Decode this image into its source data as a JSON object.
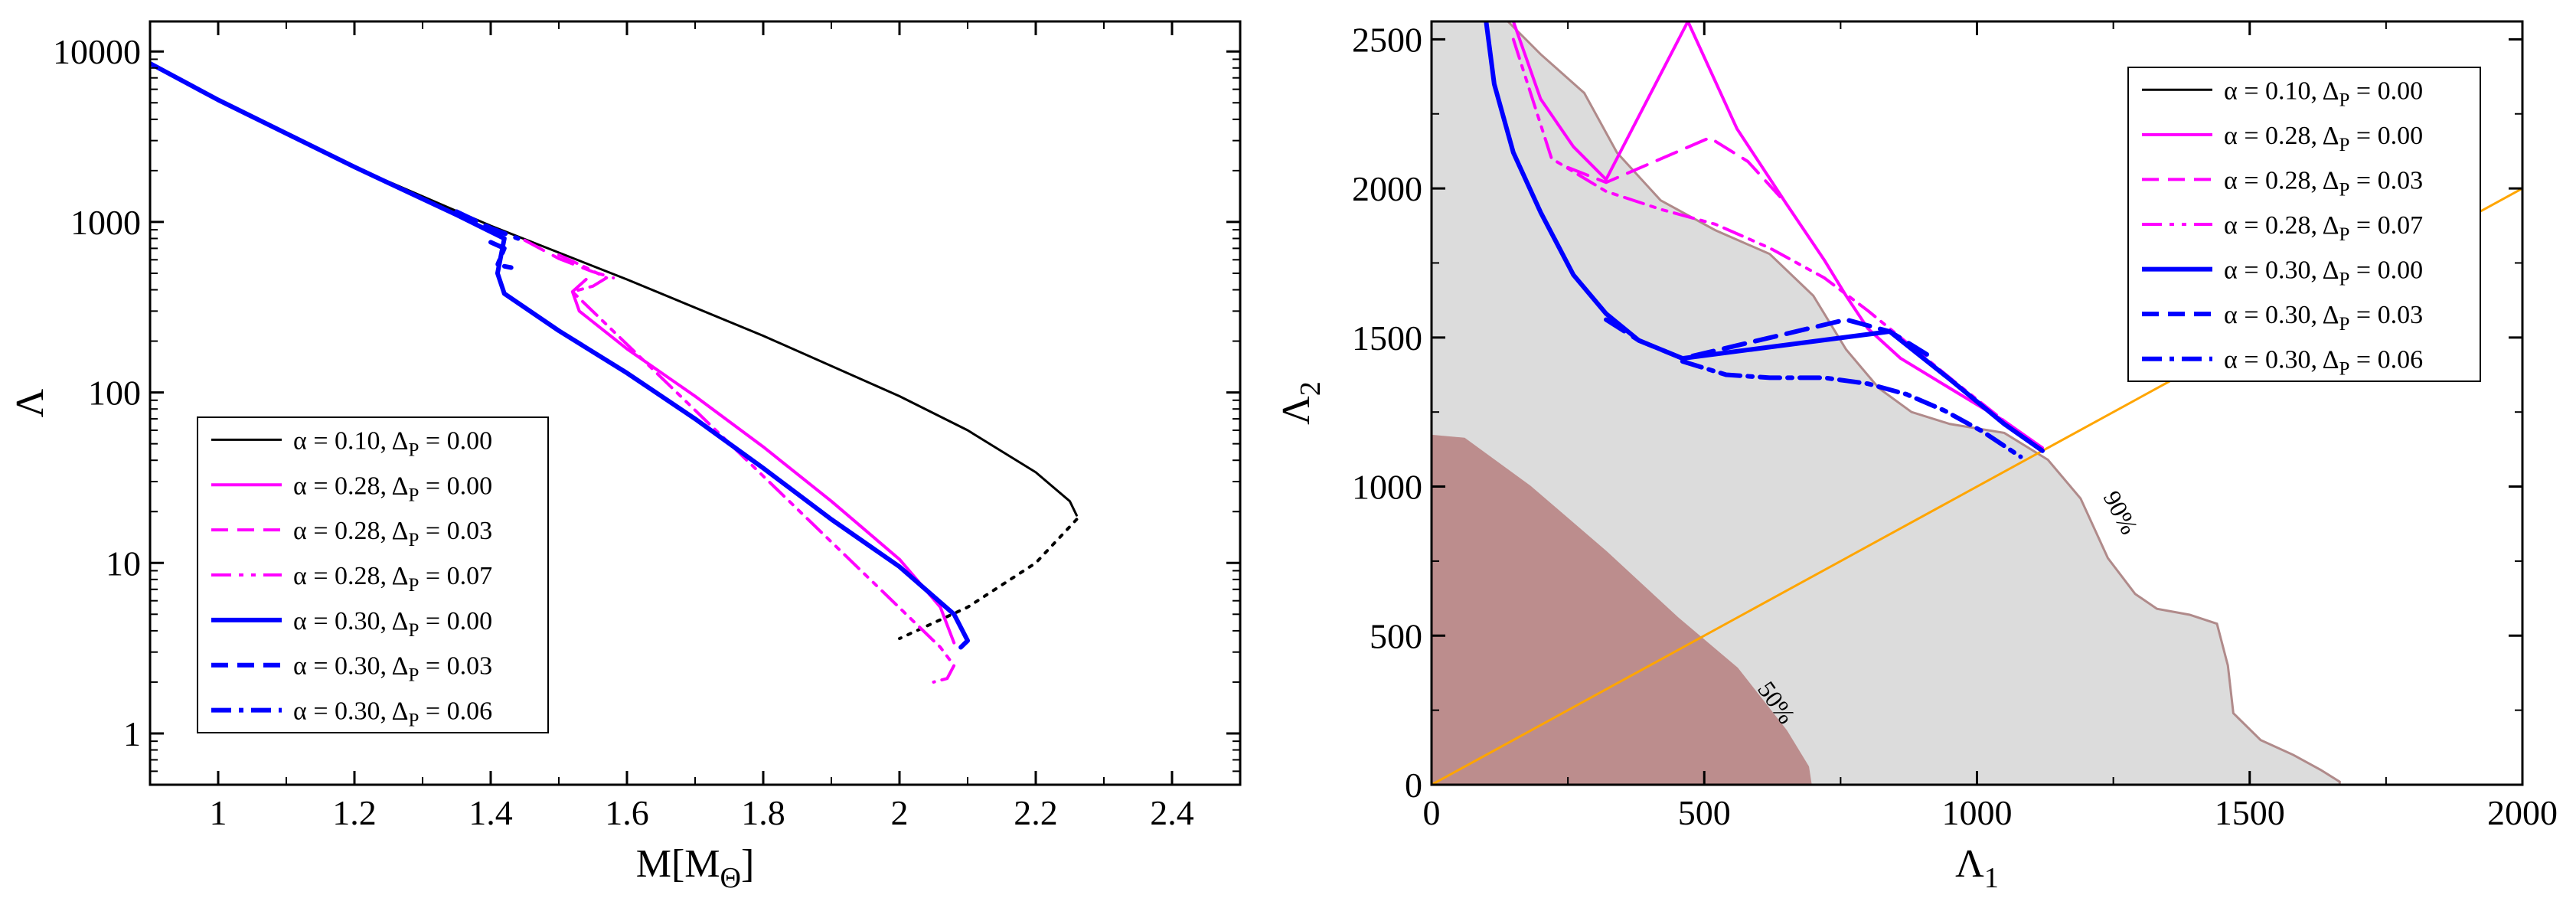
{
  "chart_data": [
    {
      "type": "line",
      "title": "",
      "xlabel": "M[M",
      "xlabel_sub": "Θ",
      "xlabel_end": "]",
      "ylabel": "Λ",
      "xlim": [
        0.9,
        2.5
      ],
      "ylim": [
        0.5,
        15000
      ],
      "yscale": "log",
      "xticks": [
        1,
        1.2,
        1.4,
        1.6,
        1.8,
        2,
        2.2,
        2.4
      ],
      "yticks": [
        1,
        10,
        100,
        1000,
        10000
      ],
      "xtick_labels": [
        "1",
        "1.2",
        "1.4",
        "1.6",
        "1.8",
        "2",
        "2.2",
        "2.4"
      ],
      "ytick_labels": [
        "1",
        "10",
        "100",
        "1000",
        "10000"
      ],
      "legend_loc": "bottom-left",
      "series": [
        {
          "name": "α = 0.10, ΔP = 0.00",
          "label_main": "α = 0.10, Δ",
          "label_sub": "P",
          "label_end": " = 0.00",
          "color": "#000000",
          "style": "solid",
          "width": 3,
          "x": [
            0.9,
            1.0,
            1.2,
            1.4,
            1.6,
            1.8,
            2.0,
            2.1,
            2.2,
            2.25,
            2.26
          ],
          "y": [
            8500,
            5200,
            2100,
            950,
            460,
            215,
            95,
            60,
            34,
            23,
            19
          ]
        },
        {
          "name": "α = 0.10 unstable",
          "color": "#000000",
          "style": "dotted",
          "width": 4,
          "legend": false,
          "x": [
            2.26,
            2.2,
            2.1,
            2.0
          ],
          "y": [
            18,
            10,
            5.5,
            3.6
          ]
        },
        {
          "name": "α = 0.28, ΔP = 0.00",
          "label_main": "α = 0.28, Δ",
          "label_sub": "P",
          "label_end": " = 0.00",
          "color": "#ff00ff",
          "style": "solid",
          "width": 4,
          "x": [
            1.54,
            1.52,
            1.53,
            1.6,
            1.7,
            1.8,
            1.9,
            2.0,
            2.06,
            2.08
          ],
          "y": [
            460,
            390,
            300,
            180,
            95,
            48,
            23,
            10.5,
            5.5,
            3.4
          ]
        },
        {
          "name": "α = 0.28, ΔP = 0.03",
          "label_main": "α = 0.28, Δ",
          "label_sub": "P",
          "label_end": " = 0.03",
          "color": "#ff00ff",
          "style": "dashed",
          "width": 4,
          "x": [
            1.45,
            1.5,
            1.55,
            1.58
          ],
          "y": [
            780,
            610,
            510,
            470
          ]
        },
        {
          "name": "α = 0.28, ΔP = 0.07",
          "label_main": "α = 0.28, Δ",
          "label_sub": "P",
          "label_end": " = 0.07",
          "color": "#ff00ff",
          "style": "dashdotdot",
          "width": 4,
          "x": [
            1.5,
            1.54,
            1.57,
            1.55,
            1.52,
            2.06,
            2.08,
            2.07,
            2.05
          ],
          "y": [
            640,
            540,
            470,
            420,
            390,
            3.2,
            2.5,
            2.1,
            2.0
          ]
        },
        {
          "name": "α = 0.30, ΔP = 0.00",
          "label_main": "α = 0.30, Δ",
          "label_sub": "P",
          "label_end": " = 0.00",
          "color": "#0000ff",
          "style": "solid",
          "width": 6,
          "x": [
            0.9,
            1.0,
            1.2,
            1.35,
            1.42,
            1.41,
            1.42,
            1.5,
            1.6,
            1.7,
            1.8,
            1.9,
            2.0,
            2.08,
            2.1,
            2.09
          ],
          "y": [
            8500,
            5200,
            2100,
            1100,
            800,
            500,
            380,
            230,
            130,
            70,
            36,
            18,
            9.5,
            5,
            3.5,
            3.2
          ]
        },
        {
          "name": "α = 0.30, ΔP = 0.03",
          "label_main": "α = 0.30, Δ",
          "label_sub": "P",
          "label_end": " = 0.03",
          "color": "#0000ff",
          "style": "dashed",
          "width": 6,
          "x": [
            1.35,
            1.4,
            1.44
          ],
          "y": [
            1150,
            920,
            800
          ]
        },
        {
          "name": "α = 0.30, ΔP = 0.06",
          "label_main": "α = 0.30, Δ",
          "label_sub": "P",
          "label_end": " = 0.06",
          "color": "#0000ff",
          "style": "dashdot",
          "width": 6,
          "x": [
            1.4,
            1.42,
            1.41,
            1.43
          ],
          "y": [
            760,
            700,
            560,
            540
          ]
        }
      ]
    },
    {
      "type": "line",
      "title": "",
      "xlabel": "Λ",
      "xlabel_sub": "1",
      "ylabel": "Λ",
      "ylabel_sub": "2",
      "xlim": [
        0,
        2000
      ],
      "ylim": [
        0,
        2560
      ],
      "xticks": [
        0,
        500,
        1000,
        1500,
        2000
      ],
      "yticks": [
        0,
        500,
        1000,
        1500,
        2000,
        2500
      ],
      "xtick_labels": [
        "0",
        "500",
        "1000",
        "1500",
        "2000"
      ],
      "ytick_labels": [
        "0",
        "500",
        "1000",
        "1500",
        "2000",
        "2500"
      ],
      "legend_loc": "top-right",
      "regions": [
        {
          "name": "90% credible region",
          "label": "90%",
          "fill": "#dcdcdc",
          "stroke": "#b08a8a",
          "x": [
            0,
            140,
            200,
            280,
            340,
            420,
            520,
            620,
            700,
            760,
            820,
            880,
            950,
            1050,
            1130,
            1190,
            1240,
            1290,
            1330,
            1390,
            1440,
            1460,
            1470,
            1520,
            1580,
            1630,
            1665,
            1665,
            0
          ],
          "y": [
            2560,
            2560,
            2450,
            2320,
            2120,
            1960,
            1860,
            1780,
            1640,
            1460,
            1330,
            1250,
            1210,
            1180,
            1090,
            960,
            760,
            640,
            590,
            570,
            540,
            400,
            240,
            150,
            100,
            50,
            10,
            0,
            0
          ]
        },
        {
          "name": "50% credible region",
          "label": "50%",
          "fill": "#bc8d8d",
          "stroke": "#bc8d8d",
          "x": [
            0,
            60,
            180,
            320,
            450,
            560,
            650,
            690,
            695,
            0
          ],
          "y": [
            1170,
            1160,
            1000,
            780,
            560,
            390,
            180,
            60,
            0,
            0
          ]
        }
      ],
      "series": [
        {
          "name": "Λ1 = Λ2",
          "color": "#ffa500",
          "style": "solid",
          "width": 3,
          "legend": false,
          "x": [
            0,
            2000
          ],
          "y": [
            0,
            2000
          ]
        },
        {
          "name": "α = 0.10, ΔP = 0.00",
          "label_main": "α = 0.10, Δ",
          "label_sub": "P",
          "label_end": " = 0.00",
          "color": "#000000",
          "style": "solid",
          "width": 3,
          "x": [],
          "y": []
        },
        {
          "name": "α = 0.28, ΔP = 0.00",
          "label_main": "α = 0.28, Δ",
          "label_sub": "P",
          "label_end": " = 0.00",
          "color": "#ff00ff",
          "style": "solid",
          "width": 4,
          "x": [
            150,
            200,
            260,
            320,
            470,
            560,
            650,
            720,
            760,
            800,
            860,
            950,
            1050,
            1120
          ],
          "y": [
            2560,
            2300,
            2140,
            2030,
            2560,
            2200,
            1950,
            1760,
            1640,
            1530,
            1430,
            1330,
            1220,
            1130
          ]
        },
        {
          "name": "α = 0.28, ΔP = 0.03",
          "label_main": "α = 0.28, Δ",
          "label_sub": "P",
          "label_end": " = 0.03",
          "color": "#ff00ff",
          "style": "dashed",
          "width": 4,
          "x": [
            250,
            320,
            510,
            580,
            650
          ],
          "y": [
            2070,
            2020,
            2170,
            2090,
            1950
          ]
        },
        {
          "name": "α = 0.28, ΔP = 0.07",
          "label_main": "α = 0.28, Δ",
          "label_sub": "P",
          "label_end": " = 0.07",
          "color": "#ff00ff",
          "style": "dashdotdot",
          "width": 4,
          "x": [
            150,
            220,
            320,
            420,
            520,
            620,
            720,
            800,
            880,
            960,
            1050,
            1120
          ],
          "y": [
            2500,
            2100,
            1990,
            1930,
            1880,
            1800,
            1700,
            1590,
            1470,
            1350,
            1220,
            1120
          ]
        },
        {
          "name": "α = 0.30, ΔP = 0.00",
          "label_main": "α = 0.30, Δ",
          "label_sub": "P",
          "label_end": " = 0.00",
          "color": "#0000ff",
          "style": "solid",
          "width": 6,
          "x": [
            100,
            115,
            150,
            200,
            260,
            320,
            380,
            460,
            840,
            950,
            1050,
            1120
          ],
          "y": [
            2560,
            2350,
            2120,
            1920,
            1710,
            1580,
            1490,
            1430,
            1520,
            1360,
            1210,
            1120
          ]
        },
        {
          "name": "α = 0.30, ΔP = 0.03",
          "label_main": "α = 0.30, Δ",
          "label_sub": "P",
          "label_end": " = 0.03",
          "color": "#0000ff",
          "style": "dashed",
          "width": 6,
          "x": [
            320,
            380,
            460,
            760,
            840,
            920
          ],
          "y": [
            1560,
            1490,
            1430,
            1560,
            1520,
            1430
          ]
        },
        {
          "name": "α = 0.30, ΔP = 0.06",
          "label_main": "α = 0.30, Δ",
          "label_sub": "P",
          "label_end": " = 0.06",
          "color": "#0000ff",
          "style": "dashdot",
          "width": 6,
          "x": [
            460,
            540,
            620,
            720,
            800,
            870,
            940,
            1010,
            1080
          ],
          "y": [
            1420,
            1375,
            1365,
            1365,
            1345,
            1310,
            1255,
            1185,
            1100
          ]
        }
      ]
    }
  ]
}
